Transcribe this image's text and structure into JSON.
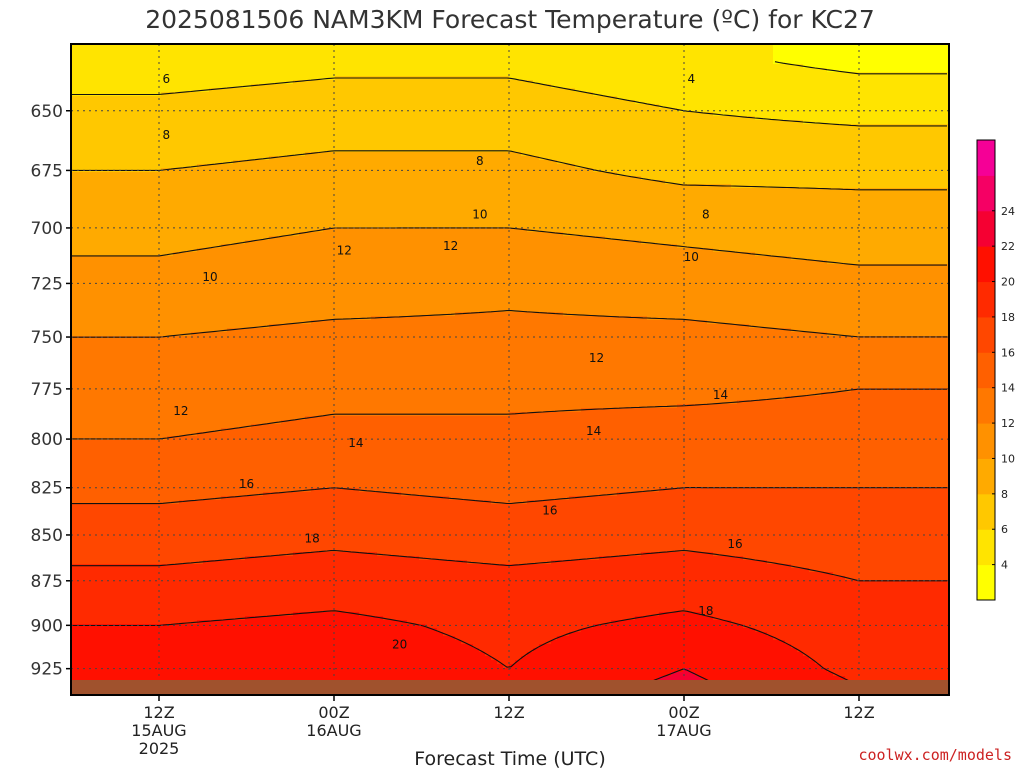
{
  "chart_data": {
    "type": "heatmap",
    "title": "2025081506 NAM3KM Forecast Temperature (ºC) for KC27",
    "xlabel": "Forecast Time (UTC)",
    "ylabel": "",
    "y_scale": "log-pressure",
    "y_direction": "pressure decreasing upward",
    "ylim": [
      935,
      630
    ],
    "y_ticks": [
      650,
      675,
      700,
      725,
      750,
      775,
      800,
      825,
      850,
      875,
      900,
      925
    ],
    "y_tick_labels": [
      "650",
      "675",
      "700",
      "725",
      "750",
      "775",
      "800",
      "825",
      "850",
      "875",
      "900",
      "925"
    ],
    "x_ticks": [
      {
        "line1": "12Z",
        "line2": "15AUG",
        "line3": "2025"
      },
      {
        "line1": "00Z",
        "line2": "16AUG",
        "line3": ""
      },
      {
        "line1": "12Z",
        "line2": "",
        "line3": ""
      },
      {
        "line1": "00Z",
        "line2": "17AUG",
        "line3": ""
      },
      {
        "line1": "12Z",
        "line2": "",
        "line3": ""
      }
    ],
    "grid": true,
    "colorbar": {
      "unit": "ºC",
      "tick_labels": [
        "4",
        "6",
        "8",
        "10",
        "12",
        "14",
        "16",
        "18",
        "20",
        "22",
        "24"
      ],
      "colors": [
        "#ffff00",
        "#ffe400",
        "#ffc800",
        "#ffaa00",
        "#ff9100",
        "#ff7800",
        "#ff6000",
        "#ff4700",
        "#ff2a00",
        "#ff1000",
        "#f50032",
        "#f50064",
        "#f50096"
      ]
    },
    "contour_labels": [
      {
        "text": "6",
        "time_h": 12.5,
        "pressure": 637
      },
      {
        "text": "4",
        "time_h": 48.5,
        "pressure": 637
      },
      {
        "text": "8",
        "time_h": 12.5,
        "pressure": 660
      },
      {
        "text": "8",
        "time_h": 34,
        "pressure": 671
      },
      {
        "text": "8",
        "time_h": 49.5,
        "pressure": 694
      },
      {
        "text": "10",
        "time_h": 34,
        "pressure": 694
      },
      {
        "text": "10",
        "time_h": 48.5,
        "pressure": 713
      },
      {
        "text": "10",
        "time_h": 15.5,
        "pressure": 722
      },
      {
        "text": "12",
        "time_h": 24.7,
        "pressure": 710
      },
      {
        "text": "12",
        "time_h": 32,
        "pressure": 708
      },
      {
        "text": "12",
        "time_h": 42,
        "pressure": 760
      },
      {
        "text": "12",
        "time_h": 13.5,
        "pressure": 786
      },
      {
        "text": "14",
        "time_h": 41.8,
        "pressure": 796
      },
      {
        "text": "14",
        "time_h": 50.5,
        "pressure": 778
      },
      {
        "text": "14",
        "time_h": 25.5,
        "pressure": 802
      },
      {
        "text": "14",
        "time_h": 5.5,
        "pressure": 810
      },
      {
        "text": "16",
        "time_h": 18,
        "pressure": 823
      },
      {
        "text": "16",
        "time_h": 38.8,
        "pressure": 837
      },
      {
        "text": "16",
        "time_h": 51.5,
        "pressure": 855
      },
      {
        "text": "18",
        "time_h": 22.5,
        "pressure": 852
      },
      {
        "text": "18",
        "time_h": 49.5,
        "pressure": 892
      },
      {
        "text": "20",
        "time_h": 28.5,
        "pressure": 911
      }
    ],
    "pressure_levels_hpa": [
      630,
      650,
      675,
      700,
      725,
      750,
      775,
      800,
      825,
      850,
      875,
      900,
      925,
      935
    ],
    "temperature_at_12Z_15AUG": [
      5,
      6.5,
      8,
      9.5,
      10.5,
      12,
      13,
      14,
      15.5,
      17,
      18.5,
      20,
      21,
      21.5
    ],
    "temperature_at_00Z_16AUG": [
      5.5,
      7,
      8.5,
      10,
      11,
      12.5,
      13.5,
      14.5,
      16,
      17.5,
      19,
      20.5,
      21.5,
      22
    ],
    "temperature_at_12Z_16AUG": [
      5.5,
      7,
      8.5,
      10,
      11.5,
      12.5,
      13.5,
      14.5,
      15.5,
      17,
      18.5,
      19.5,
      20,
      20.5
    ],
    "temperature_at_00Z_17AUG": [
      4.5,
      6,
      7.5,
      9.5,
      11,
      12.5,
      13.5,
      15,
      16,
      17.5,
      19,
      20.5,
      22,
      22.5
    ],
    "temperature_at_12Z_17AUG": [
      3.5,
      5.5,
      7.5,
      9,
      10.5,
      12,
      14,
      15,
      16,
      17,
      18,
      19,
      19.5,
      20
    ]
  },
  "credit": "coolwx.com/models",
  "colors": {
    "frame": "#000000",
    "contour": "#111111",
    "grid": "#444444",
    "terrain": "#a0522d"
  }
}
